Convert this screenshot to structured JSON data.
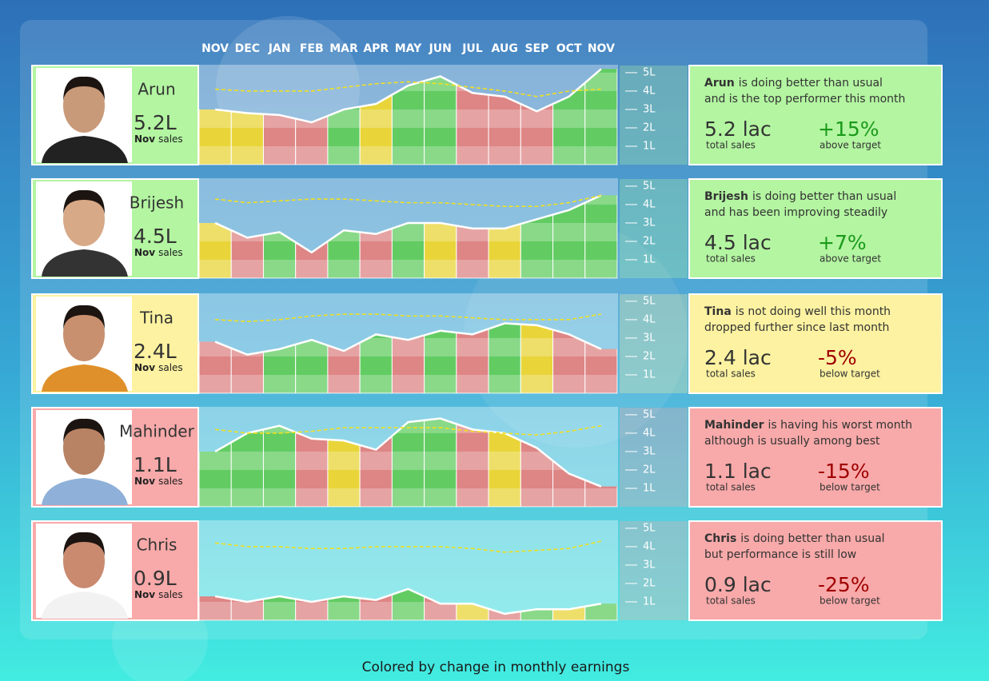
{
  "months": [
    "NOV",
    "DEC",
    "JAN",
    "FEB",
    "MAR",
    "APR",
    "MAY",
    "JUN",
    "JUL",
    "AUG",
    "SEP",
    "OCT",
    "NOV"
  ],
  "ylim": [
    0,
    5.3
  ],
  "axis_ticks": [
    {
      "value": 5,
      "label": "5L"
    },
    {
      "value": 4,
      "label": "4L"
    },
    {
      "value": 3,
      "label": "3L"
    },
    {
      "value": 2,
      "label": "2L"
    },
    {
      "value": 1,
      "label": "1L"
    }
  ],
  "caption_month": "Nov",
  "caption": "sales",
  "total_caption": "total sales",
  "column_palette": {
    "green": "#62cc62",
    "red": "#de8585",
    "yellow": "#e9d53a"
  },
  "status_palette": {
    "green": "#b3f5a1",
    "yellow": "#fcf2a1",
    "red": "#f8a9a9"
  },
  "rows": [
    {
      "name": "Arun",
      "status": "green",
      "sales_label": "5.2L",
      "summary": [
        "is doing better than usual",
        "and is the top performer this month"
      ],
      "total_label": "5.2 lac",
      "change": "+15%",
      "change_caption": "above target",
      "change_color": "#1a9a1a",
      "values": [
        3.0,
        2.8,
        2.7,
        2.3,
        3.0,
        3.3,
        4.3,
        4.8,
        3.9,
        3.7,
        2.9,
        3.7,
        5.2
      ],
      "usual": [
        4.1,
        4.0,
        4.0,
        4.0,
        4.2,
        4.4,
        4.5,
        4.4,
        4.2,
        4.0,
        3.7,
        4.0,
        4.1
      ],
      "column_colors": [
        "yellow",
        "yellow",
        "red",
        "red",
        "green",
        "yellow",
        "green",
        "green",
        "red",
        "red",
        "red",
        "green",
        "green"
      ]
    },
    {
      "name": "Brijesh",
      "status": "green",
      "sales_label": "4.5L",
      "summary": [
        "is doing better than usual",
        "and has been improving steadily"
      ],
      "total_label": "4.5 lac",
      "change": "+7%",
      "change_caption": "above target",
      "change_color": "#1a9a1a",
      "values": [
        3.0,
        2.2,
        2.5,
        1.4,
        2.6,
        2.4,
        3.0,
        3.0,
        2.7,
        2.7,
        3.2,
        3.7,
        4.5
      ],
      "usual": [
        4.3,
        4.1,
        4.2,
        4.3,
        4.3,
        4.2,
        4.1,
        4.1,
        4.0,
        3.9,
        3.9,
        4.1,
        4.5
      ],
      "column_colors": [
        "yellow",
        "red",
        "green",
        "red",
        "green",
        "red",
        "green",
        "yellow",
        "red",
        "yellow",
        "green",
        "green",
        "green"
      ]
    },
    {
      "name": "Tina",
      "status": "yellow",
      "sales_label": "2.4L",
      "summary": [
        "is not doing well this month",
        "dropped further since last month"
      ],
      "total_label": "2.4 lac",
      "change": "-5%",
      "change_caption": "below target",
      "change_color": "#a00000",
      "values": [
        2.8,
        2.1,
        2.4,
        2.9,
        2.3,
        3.2,
        2.9,
        3.4,
        3.2,
        3.8,
        3.7,
        3.2,
        2.4
      ],
      "usual": [
        4.0,
        3.9,
        4.0,
        4.2,
        4.3,
        4.3,
        4.2,
        4.2,
        4.1,
        4.0,
        4.0,
        4.0,
        4.3
      ],
      "column_colors": [
        "red",
        "red",
        "green",
        "green",
        "red",
        "green",
        "red",
        "green",
        "red",
        "green",
        "yellow",
        "red",
        "red"
      ]
    },
    {
      "name": "Mahinder",
      "status": "red",
      "sales_label": "1.1L",
      "summary": [
        "is having his worst month",
        "although is usually among best"
      ],
      "total_label": "1.1 lac",
      "change": "-15%",
      "change_caption": "below target",
      "change_color": "#a00000",
      "values": [
        3.0,
        4.0,
        4.4,
        3.7,
        3.6,
        3.1,
        4.6,
        4.8,
        4.2,
        4.0,
        3.2,
        1.8,
        1.1
      ],
      "usual": [
        4.2,
        4.0,
        4.0,
        4.1,
        4.3,
        4.3,
        4.3,
        4.3,
        4.1,
        4.0,
        3.9,
        4.1,
        4.4
      ],
      "column_colors": [
        "green",
        "green",
        "green",
        "red",
        "yellow",
        "red",
        "green",
        "green",
        "red",
        "yellow",
        "red",
        "red",
        "red"
      ]
    },
    {
      "name": "Chris",
      "status": "red",
      "sales_label": "0.9L",
      "summary": [
        "is doing better than usual",
        "but performance is still low"
      ],
      "total_label": "0.9 lac",
      "change": "-25%",
      "change_caption": "below target",
      "change_color": "#a00000",
      "values": [
        1.3,
        1.0,
        1.3,
        1.0,
        1.3,
        1.1,
        1.7,
        0.9,
        0.9,
        0.35,
        0.6,
        0.6,
        0.9
      ],
      "usual": [
        4.2,
        4.0,
        4.0,
        3.9,
        3.9,
        4.0,
        4.0,
        4.0,
        3.9,
        3.7,
        3.8,
        3.9,
        4.3
      ],
      "column_colors": [
        "red",
        "red",
        "green",
        "red",
        "green",
        "red",
        "green",
        "red",
        "yellow",
        "red",
        "green",
        "yellow",
        "green"
      ]
    }
  ],
  "footer": "Colored by change in monthly earnings"
}
